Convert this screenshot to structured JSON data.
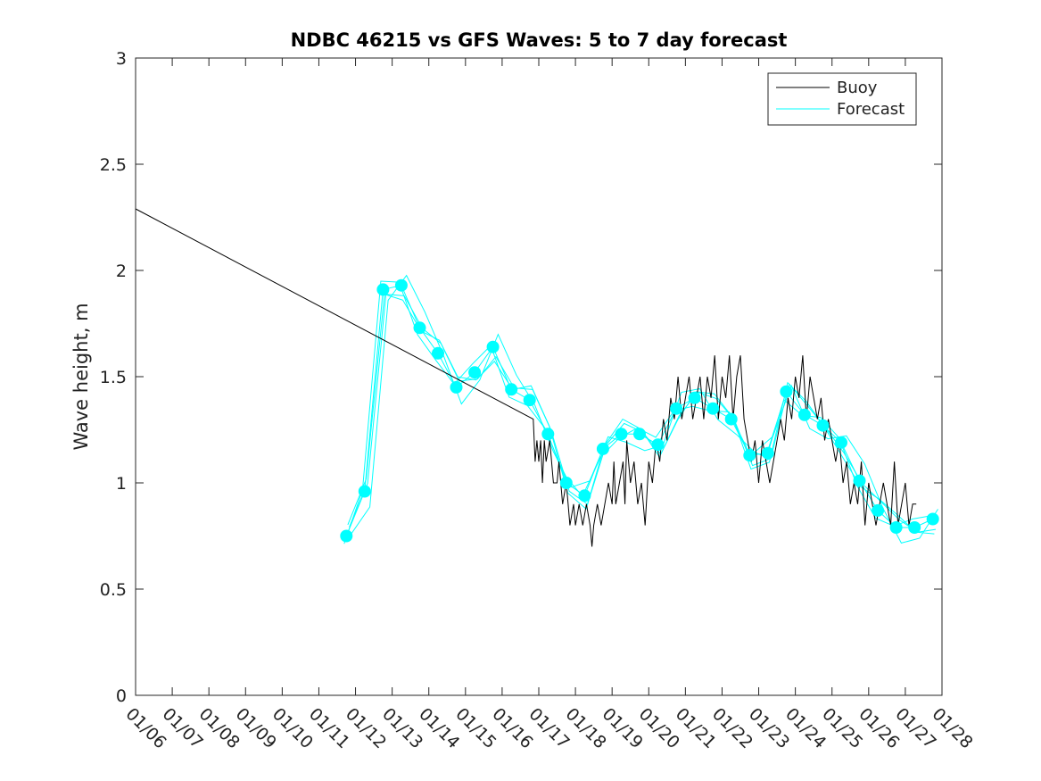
{
  "chart_data": {
    "type": "line",
    "title": "NDBC 46215 vs GFS Waves: 5 to 7 day forecast",
    "xlabel": "",
    "ylabel": "Wave height, m",
    "xlim": [
      0,
      22
    ],
    "ylim": [
      0,
      3
    ],
    "x_tick_labels": [
      "01/06",
      "01/07",
      "01/08",
      "01/09",
      "01/10",
      "01/11",
      "01/12",
      "01/13",
      "01/14",
      "01/15",
      "01/16",
      "01/17",
      "01/18",
      "01/19",
      "01/20",
      "01/21",
      "01/22",
      "01/23",
      "01/24",
      "01/25",
      "01/26",
      "01/27",
      "01/28"
    ],
    "y_ticks": [
      0,
      0.5,
      1,
      1.5,
      2,
      2.5,
      3
    ],
    "y_tick_labels": [
      "0",
      "0.5",
      "1",
      "1.5",
      "2",
      "2.5",
      "3"
    ],
    "legend": {
      "position": "top-right",
      "entries": [
        "Buoy",
        "Forecast"
      ]
    },
    "colors": {
      "buoy": "#000000",
      "forecast": "#00ffff",
      "axes": "#262626"
    },
    "series": [
      {
        "name": "Buoy",
        "x": [
          0,
          10.85,
          10.9,
          10.95,
          11.0,
          11.05,
          11.1,
          11.15,
          11.2,
          11.3,
          11.4,
          11.5,
          11.55,
          11.65,
          11.75,
          11.8,
          11.85,
          11.95,
          12.0,
          12.1,
          12.2,
          12.3,
          12.4,
          12.45,
          12.5,
          12.6,
          12.7,
          12.8,
          12.9,
          13.0,
          13.05,
          13.1,
          13.2,
          13.3,
          13.35,
          13.4,
          13.5,
          13.6,
          13.7,
          13.8,
          13.9,
          14.0,
          14.1,
          14.2,
          14.3,
          14.4,
          14.5,
          14.6,
          14.7,
          14.8,
          14.9,
          15.0,
          15.1,
          15.2,
          15.3,
          15.4,
          15.5,
          15.6,
          15.7,
          15.8,
          15.9,
          16.0,
          16.1,
          16.2,
          16.3,
          16.4,
          16.5,
          16.6,
          16.7,
          16.8,
          16.9,
          17.0,
          17.1,
          17.2,
          17.3,
          17.4,
          17.5,
          17.6,
          17.7,
          17.8,
          17.9,
          18.0,
          18.1,
          18.2,
          18.3,
          18.4,
          18.5,
          18.6,
          18.7,
          18.8,
          18.9,
          19.0,
          19.1,
          19.2,
          19.3,
          19.4,
          19.5,
          19.6,
          19.7,
          19.8,
          19.9,
          20.0,
          20.1,
          20.2,
          20.3,
          20.4,
          20.5,
          20.6,
          20.7,
          20.8,
          20.9,
          21.0,
          21.1,
          21.2,
          21.3
        ],
        "values": [
          2.29,
          1.3,
          1.1,
          1.2,
          1.1,
          1.2,
          1.0,
          1.2,
          1.1,
          1.2,
          1.0,
          1.0,
          1.1,
          0.9,
          1.0,
          0.9,
          0.8,
          0.9,
          0.8,
          0.9,
          0.8,
          0.9,
          0.8,
          0.7,
          0.8,
          0.9,
          0.8,
          0.9,
          1.0,
          0.9,
          1.1,
          0.9,
          1.0,
          1.1,
          0.9,
          1.2,
          1.0,
          1.1,
          0.9,
          1.0,
          0.8,
          1.1,
          1.0,
          1.2,
          1.1,
          1.3,
          1.2,
          1.4,
          1.3,
          1.5,
          1.3,
          1.4,
          1.5,
          1.3,
          1.4,
          1.5,
          1.3,
          1.5,
          1.4,
          1.6,
          1.3,
          1.5,
          1.4,
          1.6,
          1.3,
          1.5,
          1.6,
          1.3,
          1.2,
          1.1,
          1.2,
          1.0,
          1.2,
          1.1,
          1.0,
          1.1,
          1.2,
          1.3,
          1.2,
          1.4,
          1.3,
          1.5,
          1.4,
          1.6,
          1.3,
          1.5,
          1.4,
          1.3,
          1.4,
          1.2,
          1.3,
          1.2,
          1.1,
          1.2,
          1.0,
          1.1,
          0.9,
          1.0,
          0.9,
          1.1,
          0.8,
          1.0,
          0.9,
          0.8,
          0.9,
          1.0,
          0.9,
          0.8,
          1.1,
          0.8,
          0.9,
          1.0,
          0.8,
          0.9,
          0.9
        ]
      },
      {
        "name": "Forecast",
        "x": [
          5.75,
          6.25,
          6.75,
          7.25,
          7.75,
          8.25,
          8.75,
          9.25,
          9.75,
          10.25,
          10.75,
          11.25,
          11.75,
          12.25,
          12.75,
          13.25,
          13.75,
          14.25,
          14.75,
          15.25,
          15.75,
          16.25,
          16.75,
          17.25,
          17.75,
          18.25,
          18.75,
          19.25,
          19.75,
          20.25,
          20.75,
          21.25,
          21.75
        ],
        "values": [
          0.75,
          0.96,
          1.91,
          1.93,
          1.73,
          1.61,
          1.45,
          1.52,
          1.64,
          1.44,
          1.39,
          1.23,
          1.0,
          0.94,
          1.16,
          1.23,
          1.23,
          1.18,
          1.35,
          1.4,
          1.35,
          1.3,
          1.13,
          1.14,
          1.43,
          1.32,
          1.27,
          1.19,
          1.01,
          0.87,
          0.79,
          0.79,
          0.83
        ]
      }
    ]
  }
}
